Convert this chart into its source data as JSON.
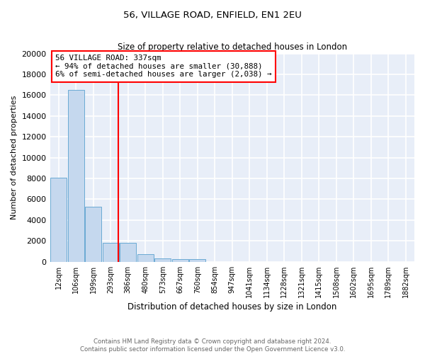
{
  "title": "56, VILLAGE ROAD, ENFIELD, EN1 2EU",
  "subtitle": "Size of property relative to detached houses in London",
  "xlabel": "Distribution of detached houses by size in London",
  "ylabel": "Number of detached properties",
  "bar_color": "#c5d8ee",
  "bar_edge_color": "#6aaad4",
  "background_color": "#e8eef8",
  "grid_color": "#ffffff",
  "bin_labels": [
    "12sqm",
    "106sqm",
    "199sqm",
    "293sqm",
    "386sqm",
    "480sqm",
    "573sqm",
    "667sqm",
    "760sqm",
    "854sqm",
    "947sqm",
    "1041sqm",
    "1134sqm",
    "1228sqm",
    "1321sqm",
    "1415sqm",
    "1508sqm",
    "1602sqm",
    "1695sqm",
    "1789sqm",
    "1882sqm"
  ],
  "bar_values": [
    8100,
    16500,
    5300,
    1800,
    1800,
    750,
    350,
    275,
    225,
    0,
    0,
    0,
    0,
    0,
    0,
    0,
    0,
    0,
    0,
    0,
    0
  ],
  "ylim": [
    0,
    20000
  ],
  "red_line_x": 3.44,
  "annotation_line1": "56 VILLAGE ROAD: 337sqm",
  "annotation_line2": "← 94% of detached houses are smaller (30,888)",
  "annotation_line3": "6% of semi-detached houses are larger (2,038) →",
  "footnote1": "Contains HM Land Registry data © Crown copyright and database right 2024.",
  "footnote2": "Contains public sector information licensed under the Open Government Licence v3.0."
}
